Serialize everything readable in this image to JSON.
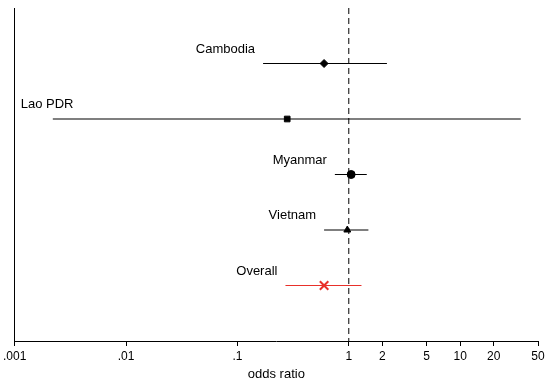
{
  "chart_data": {
    "type": "forest",
    "x_label": "odds ratio",
    "log": "x",
    "grid": false,
    "tick_labels": "x",
    "xlim": [
      0.001,
      50
    ],
    "xticks": [
      {
        "value": 0.001,
        "label": ".001"
      },
      {
        "value": 0.01,
        "label": ".01"
      },
      {
        "value": 0.1,
        "label": ".1"
      },
      1,
      2,
      5,
      10,
      20,
      50
    ],
    "reference_line": 1,
    "series": [
      {
        "name": "Cambodia",
        "color": "#000000",
        "marker": "diamond",
        "values": [
          0.6
        ],
        "ci_lower": [
          0.17
        ],
        "ci_upper": [
          2.2
        ]
      },
      {
        "name": "Lao PDR",
        "color": "#000000",
        "marker": "square",
        "values": [
          0.28
        ],
        "ci_lower": [
          0.0022
        ],
        "ci_upper": [
          35
        ]
      },
      {
        "name": "Myanmar",
        "color": "#000000",
        "marker": "circle",
        "values": [
          1.05
        ],
        "ci_lower": [
          0.75
        ],
        "ci_upper": [
          1.45
        ]
      },
      {
        "name": "Vietnam",
        "color": "#000000",
        "marker": "triangle",
        "values": [
          0.97
        ],
        "ci_lower": [
          0.6
        ],
        "ci_upper": [
          1.5
        ]
      },
      {
        "name": "Overall",
        "color": "#e8302a",
        "marker": "x",
        "values": [
          0.6
        ],
        "ci_lower": [
          0.27
        ],
        "ci_upper": [
          1.3
        ]
      }
    ]
  }
}
